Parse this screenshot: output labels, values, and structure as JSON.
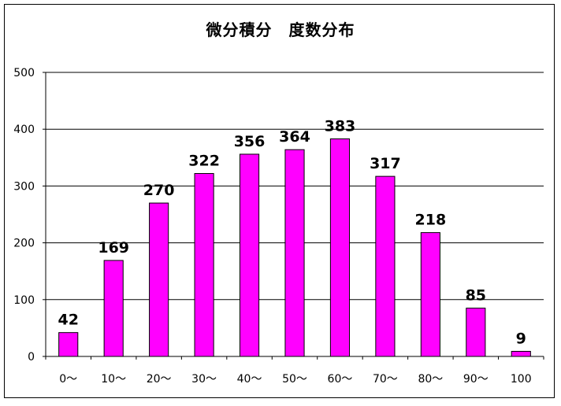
{
  "chart_data": {
    "type": "bar",
    "title": "微分積分　度数分布",
    "xlabel": "",
    "ylabel": "",
    "categories": [
      "0～",
      "10～",
      "20～",
      "30～",
      "40～",
      "50～",
      "60～",
      "70～",
      "80～",
      "90～",
      "100"
    ],
    "values": [
      42,
      169,
      270,
      322,
      356,
      364,
      383,
      317,
      218,
      85,
      9
    ],
    "ylim": [
      0,
      500
    ],
    "yticks": [
      0,
      100,
      200,
      300,
      400,
      500
    ],
    "grid": true,
    "legend": "none",
    "bar_color": "#ff00ff",
    "bar_edge_color": "#000000"
  }
}
